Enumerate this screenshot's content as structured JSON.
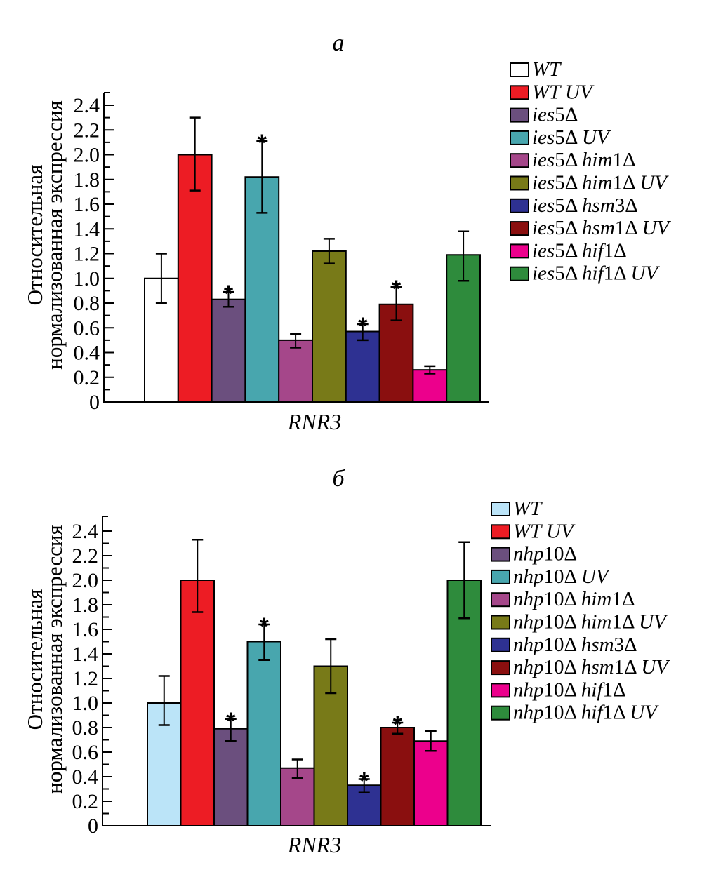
{
  "chart_data": [
    {
      "type": "bar",
      "panel": "a",
      "title": "а",
      "xlabel": "RNR3",
      "ylabel": [
        "Относительная",
        "нормализованная экспрессия"
      ],
      "ylim": [
        0,
        2.5
      ],
      "yticks": [
        "0",
        "0.2",
        "0.4",
        "0.6",
        "0.8",
        "1.0",
        "1.2",
        "1.4",
        "1.6",
        "1.8",
        "2.0",
        "2.2",
        "2.4"
      ],
      "legend_position": "right",
      "categories": [
        "RNR3"
      ],
      "series": [
        {
          "name": "WT",
          "name_parts": [
            [
              "WT",
              true
            ]
          ],
          "color": "#ffffff",
          "value": 1.0,
          "err_high": 1.2,
          "err_low": 0.8,
          "significant": false
        },
        {
          "name": "WT UV",
          "name_parts": [
            [
              "WT UV",
              true
            ]
          ],
          "color": "#ed1c24",
          "value": 2.0,
          "err_high": 2.3,
          "err_low": 1.71,
          "significant": false
        },
        {
          "name": "ies5Δ",
          "name_parts": [
            [
              "ies",
              true
            ],
            [
              "5Δ",
              false
            ]
          ],
          "color": "#6b4f7e",
          "value": 0.83,
          "err_high": 0.89,
          "err_low": 0.77,
          "significant": true
        },
        {
          "name": "ies5Δ UV",
          "name_parts": [
            [
              "ies",
              true
            ],
            [
              "5Δ ",
              false
            ],
            [
              "UV",
              true
            ]
          ],
          "color": "#48a6ae",
          "value": 1.82,
          "err_high": 2.11,
          "err_low": 1.53,
          "significant": true
        },
        {
          "name": "ies5Δ him1Δ",
          "name_parts": [
            [
              "ies",
              true
            ],
            [
              "5Δ ",
              false
            ],
            [
              "him",
              true
            ],
            [
              "1Δ",
              false
            ]
          ],
          "color": "#a5478a",
          "value": 0.5,
          "err_high": 0.55,
          "err_low": 0.44,
          "significant": false
        },
        {
          "name": "ies5Δ him1Δ UV",
          "name_parts": [
            [
              "ies",
              true
            ],
            [
              "5Δ ",
              false
            ],
            [
              "him",
              true
            ],
            [
              "1Δ ",
              false
            ],
            [
              "UV",
              true
            ]
          ],
          "color": "#787a18",
          "value": 1.22,
          "err_high": 1.32,
          "err_low": 1.12,
          "significant": false
        },
        {
          "name": "ies5Δ hsm3Δ",
          "name_parts": [
            [
              "ies",
              true
            ],
            [
              "5Δ ",
              false
            ],
            [
              "hsm",
              true
            ],
            [
              "3Δ",
              false
            ]
          ],
          "color": "#2e3192",
          "value": 0.57,
          "err_high": 0.63,
          "err_low": 0.5,
          "significant": true
        },
        {
          "name": "ies5Δ hsm1Δ UV",
          "name_parts": [
            [
              "ies",
              true
            ],
            [
              "5Δ ",
              false
            ],
            [
              "hsm",
              true
            ],
            [
              "1Δ ",
              false
            ],
            [
              "UV",
              true
            ]
          ],
          "color": "#8a0f0f",
          "value": 0.79,
          "err_high": 0.93,
          "err_low": 0.66,
          "significant": true
        },
        {
          "name": "ies5Δ hif1Δ",
          "name_parts": [
            [
              "ies",
              true
            ],
            [
              "5Δ ",
              false
            ],
            [
              "hif",
              true
            ],
            [
              "1Δ",
              false
            ]
          ],
          "color": "#ec008c",
          "value": 0.26,
          "err_high": 0.29,
          "err_low": 0.23,
          "significant": false
        },
        {
          "name": "ies5Δ hif1Δ UV",
          "name_parts": [
            [
              "ies",
              true
            ],
            [
              "5Δ ",
              false
            ],
            [
              "hif",
              true
            ],
            [
              "1Δ ",
              false
            ],
            [
              "UV",
              true
            ]
          ],
          "color": "#2e8b3c",
          "value": 1.19,
          "err_high": 1.38,
          "err_low": 0.98,
          "significant": false
        }
      ]
    },
    {
      "type": "bar",
      "panel": "b",
      "title": "б",
      "xlabel": "RNR3",
      "ylabel": [
        "Относительная",
        "нормализованная экспрессия"
      ],
      "ylim": [
        0,
        2.5
      ],
      "yticks": [
        "0",
        "0.2",
        "0.4",
        "0.6",
        "0.8",
        "1.0",
        "1.2",
        "1.4",
        "1.6",
        "1.8",
        "2.0",
        "2.2",
        "2.4"
      ],
      "legend_position": "right",
      "categories": [
        "RNR3"
      ],
      "series": [
        {
          "name": "WT",
          "name_parts": [
            [
              "WT",
              true
            ]
          ],
          "color": "#bbe4f8",
          "value": 1.0,
          "err_high": 1.22,
          "err_low": 0.82,
          "significant": false
        },
        {
          "name": "WT UV",
          "name_parts": [
            [
              "WT UV",
              true
            ]
          ],
          "color": "#ed1c24",
          "value": 2.0,
          "err_high": 2.33,
          "err_low": 1.74,
          "significant": false
        },
        {
          "name": "nhp10Δ",
          "name_parts": [
            [
              "nhp",
              true
            ],
            [
              "10Δ",
              false
            ]
          ],
          "color": "#6b4f7e",
          "value": 0.79,
          "err_high": 0.87,
          "err_low": 0.69,
          "significant": true
        },
        {
          "name": "nhp10Δ UV",
          "name_parts": [
            [
              "nhp",
              true
            ],
            [
              "10Δ ",
              false
            ],
            [
              "UV",
              true
            ]
          ],
          "color": "#48a6ae",
          "value": 1.5,
          "err_high": 1.64,
          "err_low": 1.35,
          "significant": true
        },
        {
          "name": "nhp10Δ him1Δ",
          "name_parts": [
            [
              "nhp",
              true
            ],
            [
              "10Δ ",
              false
            ],
            [
              "him",
              true
            ],
            [
              "1Δ",
              false
            ]
          ],
          "color": "#a5478a",
          "value": 0.47,
          "err_high": 0.54,
          "err_low": 0.39,
          "significant": false
        },
        {
          "name": "nhp10Δ him1Δ UV",
          "name_parts": [
            [
              "nhp",
              true
            ],
            [
              "10Δ ",
              false
            ],
            [
              "him",
              true
            ],
            [
              "1Δ ",
              false
            ],
            [
              "UV",
              true
            ]
          ],
          "color": "#787a18",
          "value": 1.3,
          "err_high": 1.52,
          "err_low": 1.08,
          "significant": false
        },
        {
          "name": "nhp10Δ hsm3Δ",
          "name_parts": [
            [
              "nhp",
              true
            ],
            [
              "10Δ ",
              false
            ],
            [
              "hsm",
              true
            ],
            [
              "3Δ",
              false
            ]
          ],
          "color": "#2e3192",
          "value": 0.33,
          "err_high": 0.38,
          "err_low": 0.27,
          "significant": true
        },
        {
          "name": "nhp10Δ hsm1Δ UV",
          "name_parts": [
            [
              "nhp",
              true
            ],
            [
              "10Δ ",
              false
            ],
            [
              "hsm",
              true
            ],
            [
              "1Δ ",
              false
            ],
            [
              "UV",
              true
            ]
          ],
          "color": "#8a0f0f",
          "value": 0.8,
          "err_high": 0.84,
          "err_low": 0.75,
          "significant": true
        },
        {
          "name": "nhp10Δ hif1Δ",
          "name_parts": [
            [
              "nhp",
              true
            ],
            [
              "10Δ ",
              false
            ],
            [
              "hif",
              true
            ],
            [
              "1Δ",
              false
            ]
          ],
          "color": "#ec008c",
          "value": 0.69,
          "err_high": 0.77,
          "err_low": 0.61,
          "significant": false
        },
        {
          "name": "nhp10Δ hif1Δ UV",
          "name_parts": [
            [
              "nhp",
              true
            ],
            [
              "10Δ ",
              false
            ],
            [
              "hif",
              true
            ],
            [
              "1Δ ",
              false
            ],
            [
              "UV",
              true
            ]
          ],
          "color": "#2e8b3c",
          "value": 2.0,
          "err_high": 2.31,
          "err_low": 1.69,
          "significant": false
        }
      ]
    }
  ],
  "significance_marker": "*"
}
